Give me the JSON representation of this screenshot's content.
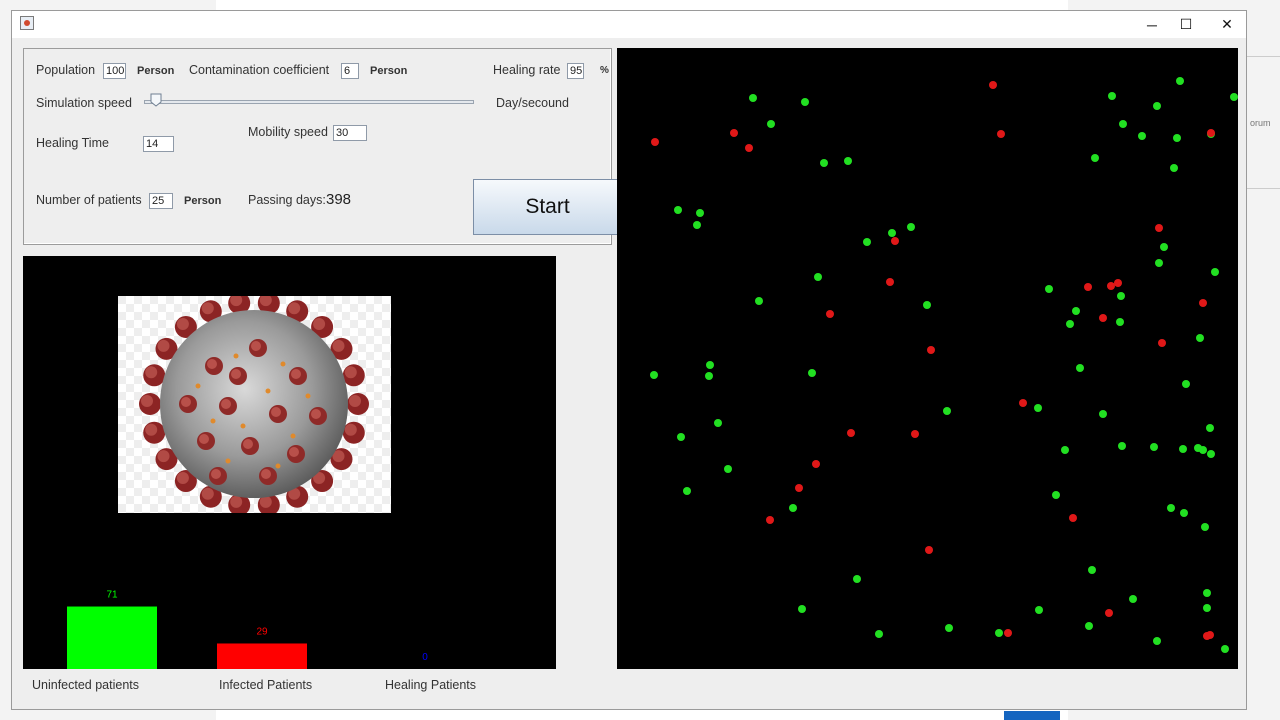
{
  "window": {
    "controls": {
      "minimize": "─",
      "maximize": "☐",
      "close": "✕"
    }
  },
  "background": {
    "fragment_text": "orum"
  },
  "panel": {
    "population": {
      "label": "Population",
      "value": "100",
      "unit": "Person"
    },
    "contamination": {
      "label": "Contamination coefficient",
      "value": "6",
      "unit": "Person"
    },
    "healing_rate": {
      "label": "Healing rate",
      "value": "95",
      "unit": "%"
    },
    "simulation_speed": {
      "label": "Simulation speed",
      "unit": "Day/secound",
      "level": 0.02
    },
    "healing_time": {
      "label": "Healing Time",
      "value": "14"
    },
    "mobility_speed": {
      "label": "Mobility speed",
      "value": "30"
    },
    "patients": {
      "label": "Number of patients",
      "value": "25",
      "unit": "Person"
    },
    "passing_days": {
      "label": "Passing days:",
      "value": "398"
    },
    "start_label": "Start"
  },
  "chart_data": {
    "type": "bar",
    "categories": [
      "Uninfected patients",
      "Infected Patients",
      "Healing Patients"
    ],
    "values": [
      71,
      29,
      0
    ],
    "colors": [
      "#00ff00",
      "#ff0000",
      "#0000ff"
    ],
    "xlabel": "",
    "ylabel": "",
    "ylim": [
      0,
      100
    ]
  },
  "simulation": {
    "colors": {
      "healthy": "#22e022",
      "infected": "#e01818"
    },
    "healthy_count": 71,
    "infected_count": 29
  }
}
